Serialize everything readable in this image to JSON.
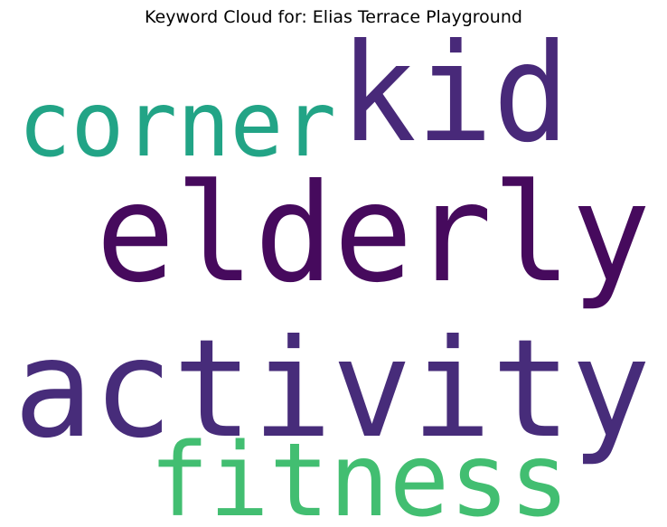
{
  "chart_data": {
    "type": "wordcloud",
    "title": "Keyword Cloud for: Elias Terrace Playground",
    "words": [
      {
        "text": "kid",
        "color": "#482979"
      },
      {
        "text": "corner",
        "color": "#22a486"
      },
      {
        "text": "elderly",
        "color": "#460a5d"
      },
      {
        "text": "activity",
        "color": "#472c7a"
      },
      {
        "text": "fitness",
        "color": "#42be71"
      }
    ]
  }
}
